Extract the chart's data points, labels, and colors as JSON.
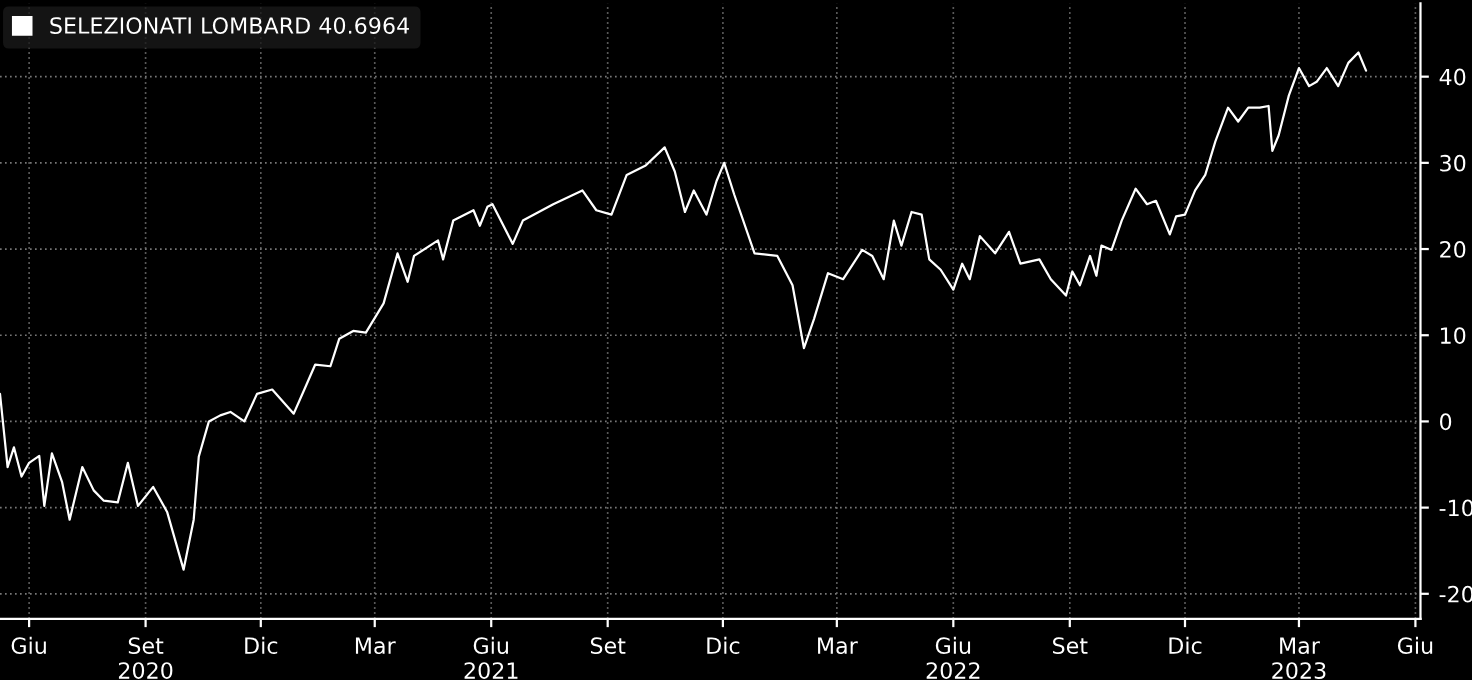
{
  "chart_data": {
    "type": "line",
    "legend": "top left",
    "grid": true,
    "line_style": "solid",
    "marker": "none",
    "xlim": [
      "2020-05-09",
      "2023-06-05"
    ],
    "ylim": [
      -22.9,
      48.5
    ],
    "yticks": [
      -20,
      -10,
      0,
      10,
      20,
      30,
      40
    ],
    "xticks": [
      {
        "value": "2020-06-01",
        "label": "Giu"
      },
      {
        "value": "2020-09-01",
        "label": "Set\n2020"
      },
      {
        "value": "2020-12-01",
        "label": "Dic"
      },
      {
        "value": "2021-03-01",
        "label": "Mar"
      },
      {
        "value": "2021-06-01",
        "label": "Giu\n2021"
      },
      {
        "value": "2021-09-01",
        "label": "Set"
      },
      {
        "value": "2021-12-01",
        "label": "Dic"
      },
      {
        "value": "2022-03-01",
        "label": "Mar"
      },
      {
        "value": "2022-06-01",
        "label": "Giu\n2022"
      },
      {
        "value": "2022-09-01",
        "label": "Set"
      },
      {
        "value": "2022-12-01",
        "label": "Dic"
      },
      {
        "value": "2023-03-01",
        "label": "Mar\n2023"
      },
      {
        "value": "2023-06-01",
        "label": "Giu"
      }
    ],
    "series": [
      {
        "name": "SELEZIONATI LOMBARD 40.6964",
        "color": "#ffffff",
        "x": [
          "2020-05-09",
          "2020-05-15",
          "2020-05-20",
          "2020-05-26",
          "2020-06-01",
          "2020-06-09",
          "2020-06-13",
          "2020-06-19",
          "2020-06-27",
          "2020-07-03",
          "2020-07-13",
          "2020-07-22",
          "2020-07-30",
          "2020-08-10",
          "2020-08-18",
          "2020-08-26",
          "2020-09-07",
          "2020-09-18",
          "2020-10-01",
          "2020-10-09",
          "2020-10-13",
          "2020-10-21",
          "2020-10-30",
          "2020-11-07",
          "2020-11-18",
          "2020-11-28",
          "2020-12-10",
          "2020-12-27",
          "2021-01-05",
          "2021-01-13",
          "2021-01-25",
          "2021-02-01",
          "2021-02-12",
          "2021-02-22",
          "2021-03-08",
          "2021-03-19",
          "2021-03-27",
          "2021-04-01",
          "2021-04-20",
          "2021-04-24",
          "2021-05-02",
          "2021-05-18",
          "2021-05-23",
          "2021-05-29",
          "2021-06-02",
          "2021-06-18",
          "2021-06-26",
          "2021-07-20",
          "2021-08-12",
          "2021-08-23",
          "2021-09-04",
          "2021-09-16",
          "2021-10-01",
          "2021-10-16",
          "2021-10-24",
          "2021-11-01",
          "2021-11-08",
          "2021-11-18",
          "2021-11-26",
          "2021-12-02",
          "2021-12-10",
          "2021-12-26",
          "2022-01-13",
          "2022-01-25",
          "2022-02-03",
          "2022-02-11",
          "2022-02-22",
          "2022-03-06",
          "2022-03-21",
          "2022-03-29",
          "2022-04-07",
          "2022-04-15",
          "2022-04-21",
          "2022-04-29",
          "2022-05-07",
          "2022-05-13",
          "2022-05-22",
          "2022-06-01",
          "2022-06-08",
          "2022-06-14",
          "2022-06-22",
          "2022-07-04",
          "2022-07-15",
          "2022-07-24",
          "2022-08-08",
          "2022-08-17",
          "2022-08-29",
          "2022-09-03",
          "2022-09-09",
          "2022-09-17",
          "2022-09-22",
          "2022-09-26",
          "2022-10-04",
          "2022-10-12",
          "2022-10-23",
          "2022-11-01",
          "2022-11-08",
          "2022-11-19",
          "2022-11-24",
          "2022-12-01",
          "2022-12-09",
          "2022-12-17",
          "2022-12-25",
          "2023-01-04",
          "2023-01-12",
          "2023-01-20",
          "2023-01-29",
          "2023-02-05",
          "2023-02-08",
          "2023-02-13",
          "2023-02-21",
          "2023-03-01",
          "2023-03-09",
          "2023-03-15",
          "2023-03-23",
          "2023-04-01",
          "2023-04-09",
          "2023-04-17",
          "2023-04-23"
        ],
        "values": [
          3.2,
          -5.3,
          -3,
          -6.4,
          -4.8,
          -4,
          -9.8,
          -3.7,
          -7,
          -11.4,
          -5.3,
          -8,
          -9.2,
          -9.4,
          -4.8,
          -9.8,
          -7.6,
          -10.5,
          -17.2,
          -11.4,
          -4.1,
          0,
          0.7,
          1.1,
          0,
          3.2,
          3.7,
          0.9,
          3.9,
          6.6,
          6.4,
          9.6,
          10.5,
          10.3,
          13.7,
          19.5,
          16.2,
          19.2,
          21,
          18.8,
          23.3,
          24.5,
          22.7,
          24.9,
          25.2,
          20.6,
          23.3,
          25.2,
          26.8,
          24.5,
          24,
          28.6,
          29.7,
          31.8,
          29,
          24.3,
          26.8,
          24,
          27.9,
          30,
          26.3,
          19.5,
          19.2,
          15.8,
          8.5,
          11.9,
          17.2,
          16.5,
          19.9,
          19.2,
          16.5,
          23.3,
          20.4,
          24.3,
          24,
          18.8,
          17.6,
          15.3,
          18.3,
          16.5,
          21.5,
          19.5,
          22,
          18.3,
          18.8,
          16.5,
          14.6,
          17.4,
          15.8,
          19.2,
          16.9,
          20.4,
          19.9,
          23.3,
          27,
          25.2,
          25.6,
          21.7,
          23.8,
          24,
          26.8,
          28.6,
          32.5,
          36.4,
          34.8,
          36.4,
          36.4,
          36.6,
          31.4,
          33.2,
          37.8,
          41,
          38.9,
          39.4,
          41,
          38.9,
          41.6,
          42.8,
          40.7
        ]
      }
    ]
  }
}
